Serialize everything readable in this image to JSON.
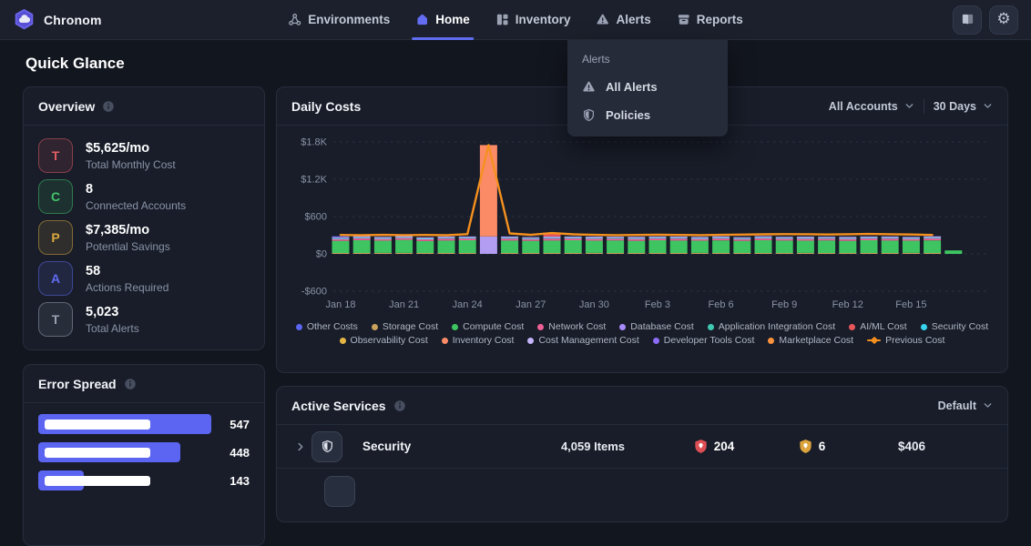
{
  "brand": {
    "name": "Chronom"
  },
  "nav": {
    "items": [
      {
        "id": "environments",
        "label": "Environments",
        "icon": "cluster-icon",
        "active": false
      },
      {
        "id": "home",
        "label": "Home",
        "icon": "home-icon",
        "active": true
      },
      {
        "id": "inventory",
        "label": "Inventory",
        "icon": "grid-icon",
        "active": false
      },
      {
        "id": "alerts",
        "label": "Alerts",
        "icon": "alert-triangle-icon",
        "active": false
      },
      {
        "id": "reports",
        "label": "Reports",
        "icon": "reports-icon",
        "active": false
      }
    ]
  },
  "alerts_menu": {
    "title": "Alerts",
    "items": [
      {
        "id": "all-alerts",
        "label": "All Alerts",
        "icon": "alert-triangle-icon"
      },
      {
        "id": "policies",
        "label": "Policies",
        "icon": "shield-icon"
      }
    ]
  },
  "page_title": "Quick Glance",
  "overview": {
    "title": "Overview",
    "stats": [
      {
        "letter": "T",
        "color": "#e25d63",
        "value": "$5,625/mo",
        "label": "Total Monthly Cost"
      },
      {
        "letter": "C",
        "color": "#42c36a",
        "value": "8",
        "label": "Connected Accounts"
      },
      {
        "letter": "P",
        "color": "#d9a93f",
        "value": "$7,385/mo",
        "label": "Potential Savings"
      },
      {
        "letter": "A",
        "color": "#5f6cf0",
        "value": "58",
        "label": "Actions Required"
      },
      {
        "letter": "T",
        "color": "#99a1b3",
        "value": "5,023",
        "label": "Total Alerts"
      }
    ]
  },
  "error_spread": {
    "title": "Error Spread",
    "bar_color": "#5b65f1",
    "max": 547,
    "bars": [
      {
        "value": 547,
        "display": "547"
      },
      {
        "value": 448,
        "display": "448"
      },
      {
        "value": 143,
        "display": "143"
      }
    ]
  },
  "daily_costs": {
    "title": "Daily Costs",
    "account_filter": "All Accounts",
    "range_filter": "30 Days"
  },
  "chart_data": {
    "type": "bar",
    "title": "Daily Costs",
    "stacked": true,
    "ylim": [
      -600,
      1950
    ],
    "grid": "dashed-horizontal",
    "legend_position": "bottom",
    "y_ticks": [
      {
        "label": "$1.8K",
        "value": 1800
      },
      {
        "label": "$1.2K",
        "value": 1200
      },
      {
        "label": "$600",
        "value": 600
      },
      {
        "label": "$0",
        "value": 0
      },
      {
        "label": "-$600",
        "value": -600
      }
    ],
    "x_tick_labels": [
      "Jan 18",
      "Jan 21",
      "Jan 24",
      "Jan 27",
      "Jan 30",
      "Feb 3",
      "Feb 6",
      "Feb 9",
      "Feb 12",
      "Feb 15"
    ],
    "x_tick_bar_indices": [
      0,
      3,
      6,
      9,
      12,
      15,
      18,
      21,
      24,
      27
    ],
    "segments": [
      {
        "name": "Storage Cost",
        "color": "#c9a05c"
      },
      {
        "name": "Compute Cost",
        "color": "#3ec561"
      },
      {
        "name": "Network Cost",
        "color": "#ef5f96"
      },
      {
        "name": "Security Cost",
        "color": "#4fd1e8"
      },
      {
        "name": "Cost Management Cost",
        "color": "#b39df2"
      },
      {
        "name": "Other Costs",
        "color": "#5b65f1"
      },
      {
        "name": "Inventory Cost",
        "color": "#fa8b66"
      },
      {
        "name": "AI/ML Cost",
        "color": "#e8555a"
      }
    ],
    "bars": [
      [
        15,
        195,
        28,
        14,
        18,
        12,
        0,
        0
      ],
      [
        15,
        205,
        30,
        15,
        20,
        0,
        0,
        0
      ],
      [
        15,
        198,
        28,
        14,
        18,
        0,
        0,
        0
      ],
      [
        15,
        210,
        30,
        15,
        20,
        0,
        0,
        0
      ],
      [
        15,
        192,
        28,
        14,
        18,
        0,
        0,
        0
      ],
      [
        15,
        200,
        30,
        15,
        20,
        0,
        0,
        0
      ],
      [
        15,
        205,
        28,
        14,
        18,
        0,
        0,
        0
      ],
      [
        0,
        0,
        0,
        0,
        280,
        0,
        1470,
        0
      ],
      [
        15,
        200,
        30,
        15,
        20,
        0,
        0,
        0
      ],
      [
        15,
        195,
        28,
        14,
        18,
        0,
        0,
        0
      ],
      [
        15,
        200,
        30,
        15,
        20,
        0,
        0,
        50
      ],
      [
        15,
        205,
        28,
        14,
        18,
        0,
        0,
        0
      ],
      [
        15,
        198,
        30,
        15,
        20,
        0,
        0,
        0
      ],
      [
        15,
        202,
        28,
        14,
        18,
        0,
        0,
        0
      ],
      [
        15,
        195,
        30,
        15,
        20,
        0,
        0,
        0
      ],
      [
        15,
        205,
        28,
        14,
        18,
        0,
        0,
        0
      ],
      [
        15,
        200,
        30,
        15,
        20,
        0,
        0,
        0
      ],
      [
        15,
        198,
        28,
        14,
        18,
        0,
        0,
        0
      ],
      [
        15,
        202,
        30,
        15,
        20,
        0,
        0,
        0
      ],
      [
        15,
        195,
        28,
        14,
        18,
        0,
        0,
        0
      ],
      [
        15,
        205,
        30,
        15,
        20,
        0,
        0,
        0
      ],
      [
        15,
        200,
        28,
        14,
        18,
        0,
        0,
        0
      ],
      [
        15,
        198,
        30,
        15,
        20,
        0,
        0,
        0
      ],
      [
        15,
        202,
        28,
        14,
        18,
        0,
        0,
        0
      ],
      [
        15,
        195,
        30,
        15,
        20,
        0,
        0,
        0
      ],
      [
        15,
        205,
        28,
        14,
        18,
        0,
        0,
        0
      ],
      [
        15,
        200,
        30,
        15,
        20,
        0,
        0,
        0
      ],
      [
        15,
        198,
        28,
        14,
        18,
        0,
        0,
        0
      ],
      [
        15,
        202,
        30,
        15,
        20,
        0,
        0,
        0
      ],
      [
        0,
        55,
        0,
        0,
        0,
        0,
        0,
        0
      ]
    ],
    "previous_cost_line": [
      305,
      300,
      306,
      302,
      305,
      300,
      318,
      1750,
      330,
      306,
      335,
      315,
      306,
      301,
      305,
      308,
      305,
      302,
      306,
      310,
      314,
      318,
      316,
      312,
      316,
      320,
      316,
      312,
      304,
      null
    ],
    "previous_cost_color": "#f5901f",
    "legend_rows": [
      [
        {
          "label": "Other Costs",
          "color": "#5b65f1"
        },
        {
          "label": "Storage Cost",
          "color": "#c9a05c"
        },
        {
          "label": "Compute Cost",
          "color": "#3ec561"
        },
        {
          "label": "Network Cost",
          "color": "#ef5f96"
        },
        {
          "label": "Database Cost",
          "color": "#a78bfa"
        },
        {
          "label": "Application Integration Cost",
          "color": "#3fc9b0"
        },
        {
          "label": "AI/ML Cost",
          "color": "#e8555a"
        },
        {
          "label": "Security Cost",
          "color": "#35d3ee"
        }
      ],
      [
        {
          "label": "Observability Cost",
          "color": "#e5b544"
        },
        {
          "label": "Inventory Cost",
          "color": "#fa8b66"
        },
        {
          "label": "Cost Management Cost",
          "color": "#c4b5fd"
        },
        {
          "label": "Developer Tools Cost",
          "color": "#8b6cf6"
        },
        {
          "label": "Marketplace Cost",
          "color": "#fb923c",
          "marker": "dot"
        },
        {
          "label": "Previous Cost",
          "color": "#f5901f",
          "marker": "line"
        }
      ]
    ]
  },
  "active_services": {
    "title": "Active Services",
    "sort_filter": "Default",
    "rows": [
      {
        "name": "Security",
        "icon": "shield-icon",
        "items": "4,059 Items",
        "critical": "204",
        "critical_color": "#dd4f55",
        "warning": "6",
        "warning_color": "#dca23c",
        "cost": "$406"
      }
    ]
  }
}
